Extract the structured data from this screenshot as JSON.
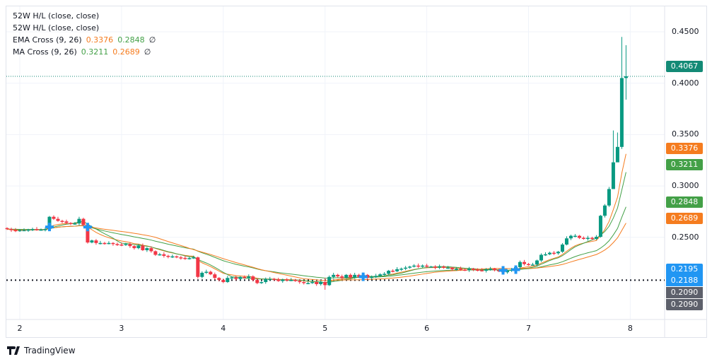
{
  "legend": {
    "line1": "52W H/L (close, close)",
    "line2": "52W H/L (close, close)",
    "ema": {
      "label": "EMA Cross (9, 26)",
      "v1": "0.3376",
      "v2": "0.2848",
      "icon": "∅"
    },
    "ma": {
      "label": "MA Cross (9, 26)",
      "v1": "0.3211",
      "v2": "0.2689",
      "icon": "∅"
    }
  },
  "price_labels": {
    "last": "0.4067",
    "ema_fast": "0.3376",
    "ma_fast": "0.3211",
    "ema_slow": "0.2848",
    "ma_slow": "0.2689",
    "blue1": "0.2195",
    "blue2": "0.2188",
    "gray1": "0.2090",
    "gray2": "0.2090"
  },
  "colors": {
    "up": "#089981",
    "down": "#f23645",
    "orange": "#f57c1f",
    "green": "#43a047",
    "blue": "#2196f3",
    "gray": "#5d606b",
    "last": "#138a76"
  },
  "brand": "TradingView",
  "chart_data": {
    "type": "candlestick",
    "y_ticks": [
      "0.4500",
      "0.4000",
      "0.3500",
      "0.3000",
      "0.2500"
    ],
    "y_tick_values": [
      0.45,
      0.4,
      0.35,
      0.3,
      0.25
    ],
    "ylim": [
      0.19,
      0.465
    ],
    "x_ticks": [
      "2",
      "3",
      "4",
      "5",
      "6",
      "7",
      "8"
    ],
    "candles_per_day": 24,
    "first_candle_day": 1.875,
    "open_first": 0.259,
    "closes": [
      0.258,
      0.257,
      0.2565,
      0.257,
      0.257,
      0.2575,
      0.258,
      0.2575,
      0.2575,
      0.258,
      0.27,
      0.268,
      0.266,
      0.2655,
      0.264,
      0.263,
      0.2635,
      0.268,
      0.262,
      0.245,
      0.247,
      0.2445,
      0.2445,
      0.244,
      0.2445,
      0.2435,
      0.243,
      0.2425,
      0.2435,
      0.2415,
      0.2395,
      0.242,
      0.2375,
      0.2395,
      0.2365,
      0.233,
      0.2335,
      0.232,
      0.231,
      0.2315,
      0.2305,
      0.23,
      0.2295,
      0.2298,
      0.2305,
      0.2115,
      0.2155,
      0.2165,
      0.214,
      0.2105,
      0.2085,
      0.2065,
      0.2105,
      0.211,
      0.2095,
      0.2115,
      0.2105,
      0.212,
      0.2085,
      0.2055,
      0.2065,
      0.2095,
      0.2095,
      0.209,
      0.2075,
      0.209,
      0.2085,
      0.2085,
      0.2075,
      0.2065,
      0.2055,
      0.2055,
      0.2065,
      0.2045,
      0.2065,
      0.2035,
      0.2115,
      0.2135,
      0.212,
      0.2105,
      0.2135,
      0.211,
      0.2135,
      0.2115,
      0.2135,
      0.2105,
      0.2115,
      0.2125,
      0.214,
      0.2145,
      0.2175,
      0.217,
      0.219,
      0.2195,
      0.2205,
      0.2215,
      0.2225,
      0.222,
      0.2225,
      0.2215,
      0.2215,
      0.2205,
      0.2215,
      0.2205,
      0.2205,
      0.219,
      0.2195,
      0.2185,
      0.218,
      0.2195,
      0.2185,
      0.218,
      0.2175,
      0.219,
      0.2195,
      0.218,
      0.217,
      0.216,
      0.2175,
      0.2185,
      0.221,
      0.226,
      0.224,
      0.2235,
      0.2235,
      0.2275,
      0.233,
      0.2335,
      0.235,
      0.2345,
      0.236,
      0.243,
      0.249,
      0.2515,
      0.2515,
      0.2495,
      0.2485,
      0.2495,
      0.2485,
      0.2505,
      0.271,
      0.281,
      0.297,
      0.323,
      0.338,
      0.405,
      0.4067
    ],
    "wick_overrides": {
      "143": [
        0.354,
        0.318
      ],
      "144": [
        0.352,
        0.334
      ],
      "145": [
        0.445,
        0.336
      ],
      "146": [
        0.437,
        0.384
      ],
      "75": [
        0.2105,
        0.199
      ]
    },
    "indicators": [
      "EMA 9",
      "EMA 26",
      "SMA 9",
      "SMA 26"
    ],
    "hlines": {
      "last_price": 0.4067,
      "low_52w": 0.209
    }
  }
}
